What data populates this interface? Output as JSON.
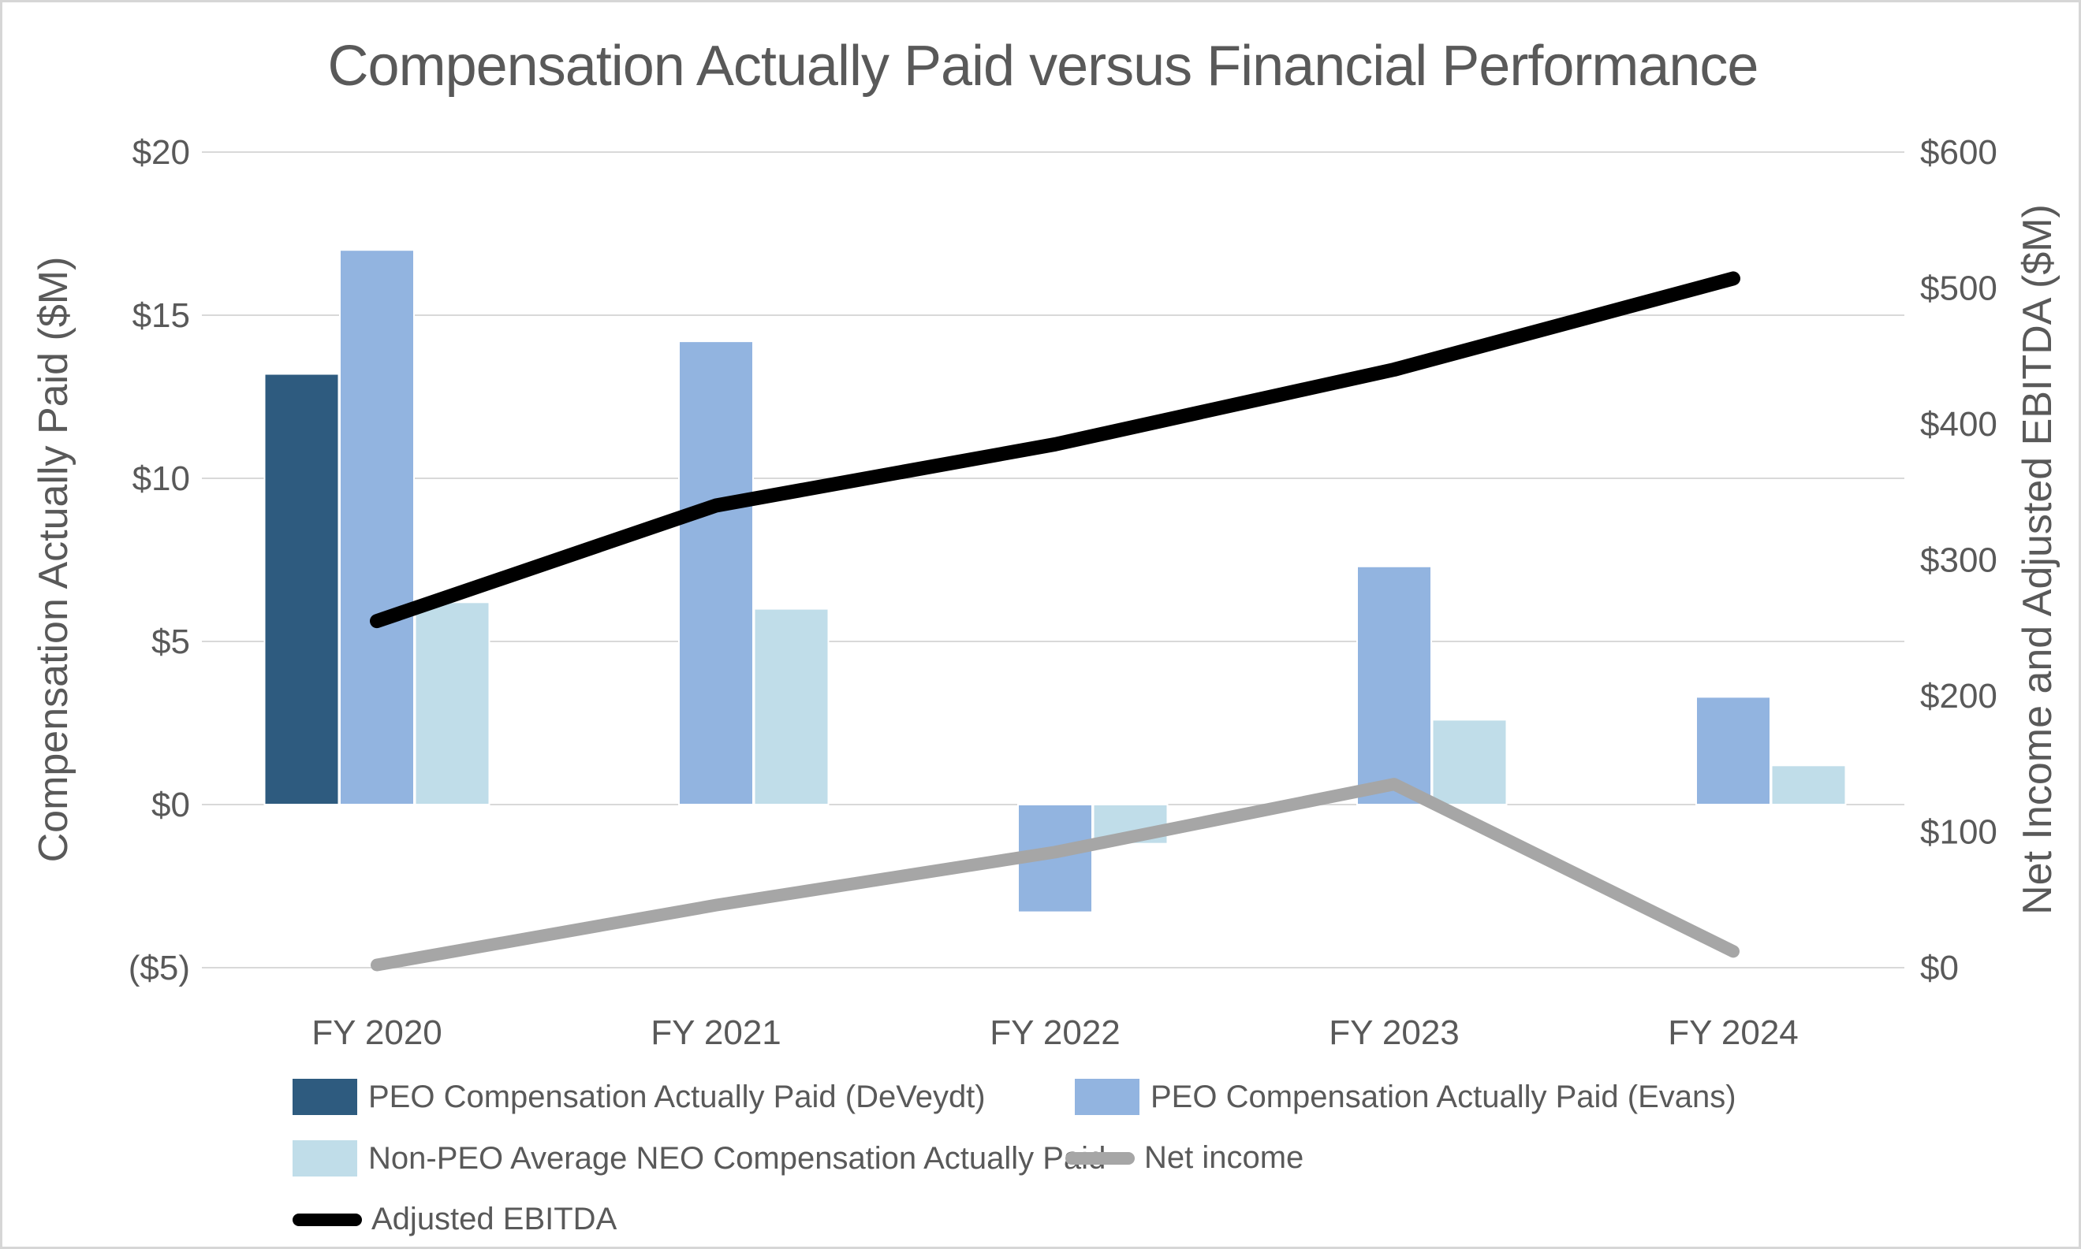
{
  "chart_data": {
    "type": "combo-bar-line",
    "title": "Compensation Actually Paid versus Financial Performance",
    "categories": [
      "FY 2020",
      "FY 2021",
      "FY 2022",
      "FY 2023",
      "FY 2024"
    ],
    "bar_series": [
      {
        "name": "PEO Compensation Actually Paid (DeVeydt)",
        "color": "#2E5B7F",
        "axis": "left",
        "values": [
          13.2,
          null,
          null,
          null,
          null
        ]
      },
      {
        "name": "PEO Compensation Actually Paid (Evans)",
        "color": "#92B4E0",
        "axis": "left",
        "values": [
          17.0,
          14.2,
          -3.3,
          7.3,
          3.3
        ]
      },
      {
        "name": "Non-PEO Average NEO Compensation Actually Paid",
        "color": "#C0DDE9",
        "axis": "left",
        "values": [
          6.2,
          6.0,
          -1.2,
          2.6,
          1.2
        ]
      }
    ],
    "line_series": [
      {
        "name": "Net income",
        "color": "#A6A6A6",
        "axis": "right",
        "values": [
          2,
          46,
          85,
          135,
          12
        ]
      },
      {
        "name": "Adjusted EBITDA",
        "color": "#000000",
        "axis": "right",
        "values": [
          255,
          340,
          385,
          440,
          507
        ]
      }
    ],
    "left_axis": {
      "label": "Compensation Actually Paid ($M)",
      "min": -5,
      "max": 20,
      "step": 5,
      "tick_values": [
        20,
        15,
        10,
        5,
        0,
        -5
      ],
      "tick_labels": [
        "$20",
        "$15",
        "$10",
        "$5",
        "$0",
        "($5)"
      ]
    },
    "right_axis": {
      "label": "Net Income and Adjusted EBITDA ($M)",
      "min": 0,
      "max": 600,
      "step": 100,
      "tick_values": [
        600,
        500,
        400,
        300,
        200,
        100,
        0
      ],
      "tick_labels": [
        "$600",
        "$500",
        "$400",
        "$300",
        "$200",
        "$100",
        "$0"
      ]
    },
    "grid": true,
    "legend_position": "bottom-left",
    "colors": {
      "grid": "#D9D9D9",
      "text": "#595959",
      "background": "#FFFFFF"
    }
  }
}
